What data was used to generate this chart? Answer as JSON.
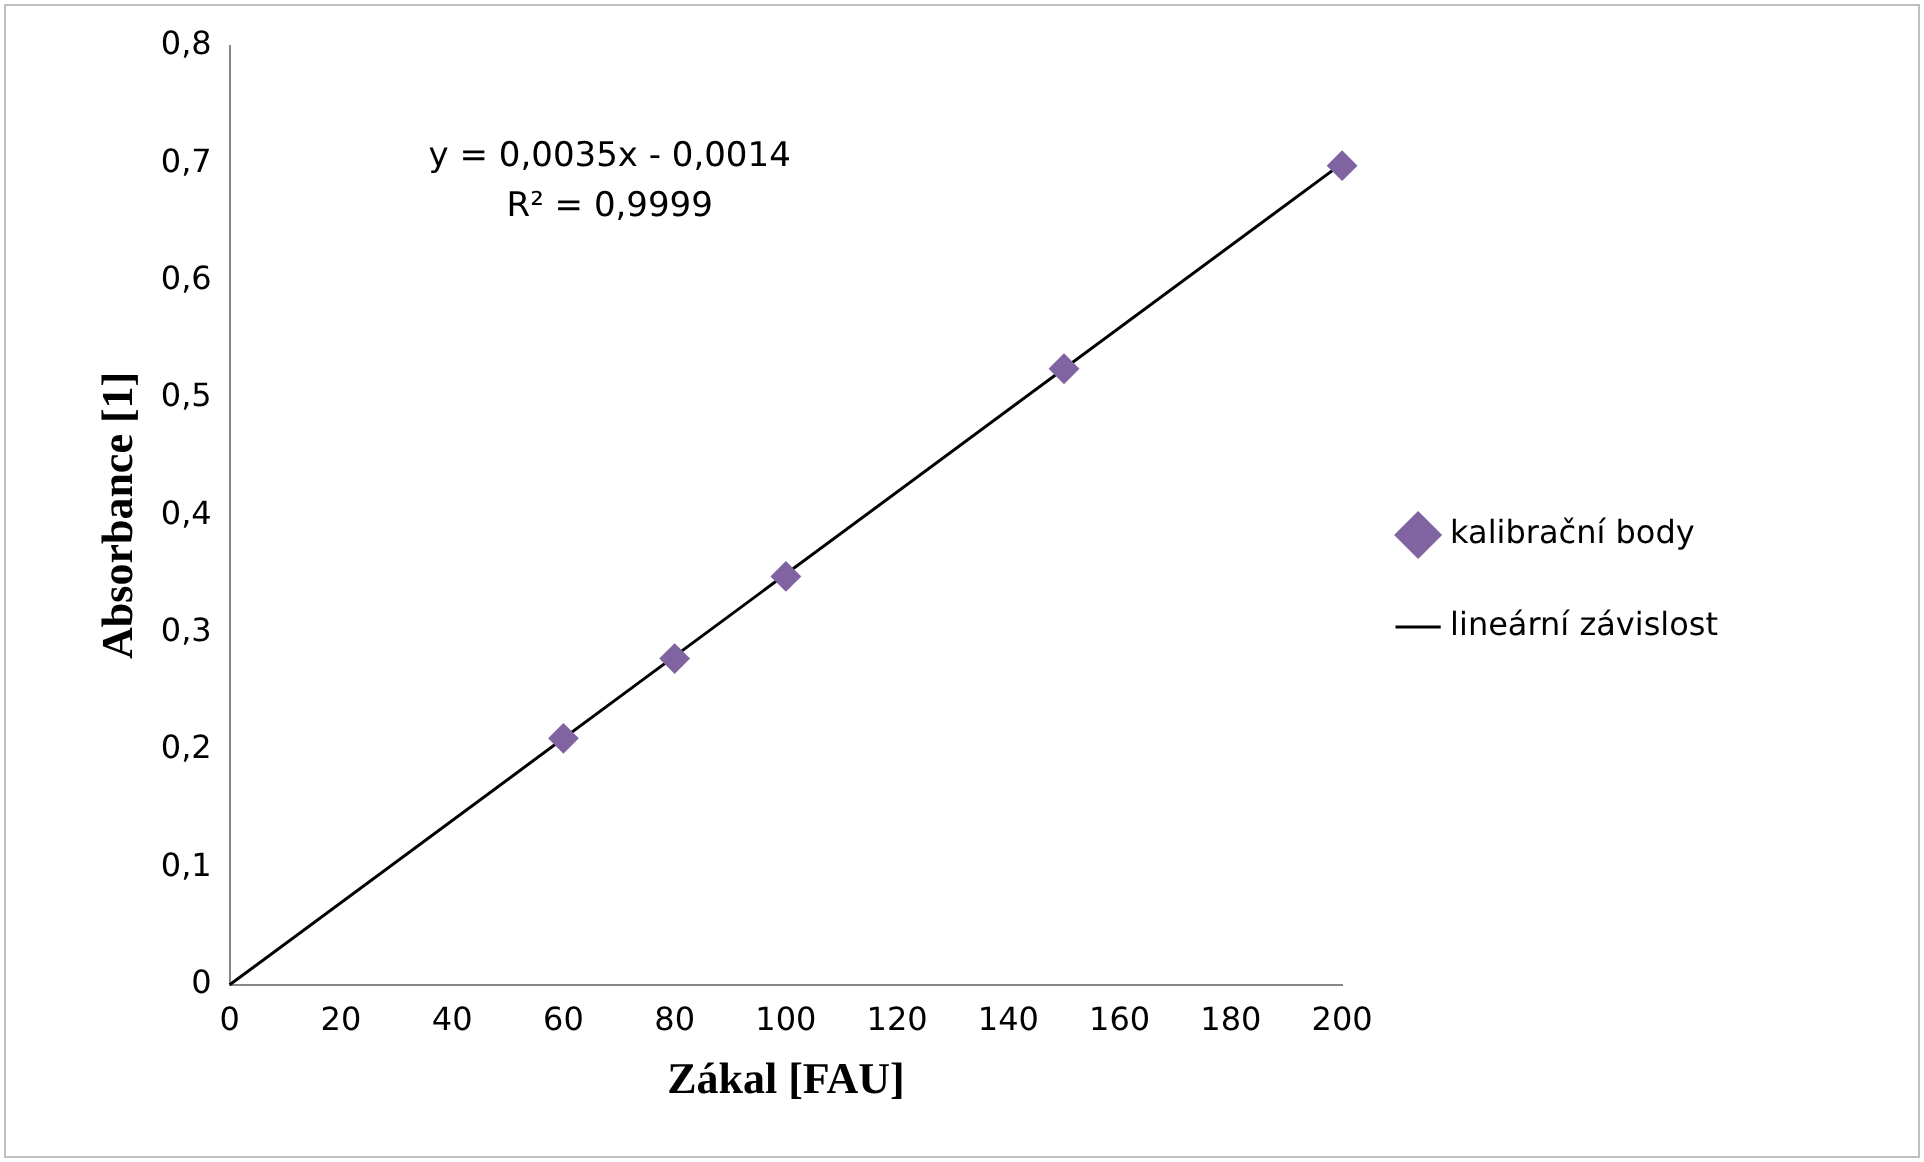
{
  "chart_data": {
    "type": "scatter",
    "xlabel": "Zákal [FAU]",
    "ylabel": "Absorbance [1]",
    "series": [
      {
        "name": "kalibrační body",
        "type": "scatter",
        "color": "#8064a2",
        "marker": "diamond",
        "x": [
          60,
          80,
          100,
          150,
          200
        ],
        "values": [
          0.21,
          0.278,
          0.348,
          0.525,
          0.698
        ]
      },
      {
        "name": "lineární závislost",
        "type": "line",
        "color": "#000000",
        "marker": "none",
        "x": [
          0,
          200
        ],
        "values": [
          0,
          0.7
        ]
      }
    ],
    "xlim": [
      0,
      200
    ],
    "xticks": [
      0,
      20,
      40,
      60,
      80,
      100,
      120,
      140,
      160,
      180,
      200
    ],
    "ylim": [
      0,
      0.8
    ],
    "yticks": [
      0,
      {
        "value": 0.1,
        "label": "0,1"
      },
      {
        "value": 0.2,
        "label": "0,2"
      },
      {
        "value": 0.3,
        "label": "0,3"
      },
      {
        "value": 0.4,
        "label": "0,4"
      },
      {
        "value": 0.5,
        "label": "0,5"
      },
      {
        "value": 0.6,
        "label": "0,6"
      },
      {
        "value": 0.7,
        "label": "0,7"
      },
      {
        "value": 0.8,
        "label": "0,8"
      }
    ],
    "annotations": [
      "y = 0,0035x - 0,0014",
      "R² = 0,9999"
    ],
    "grid": false,
    "legend": "right",
    "line_style": "solid"
  }
}
